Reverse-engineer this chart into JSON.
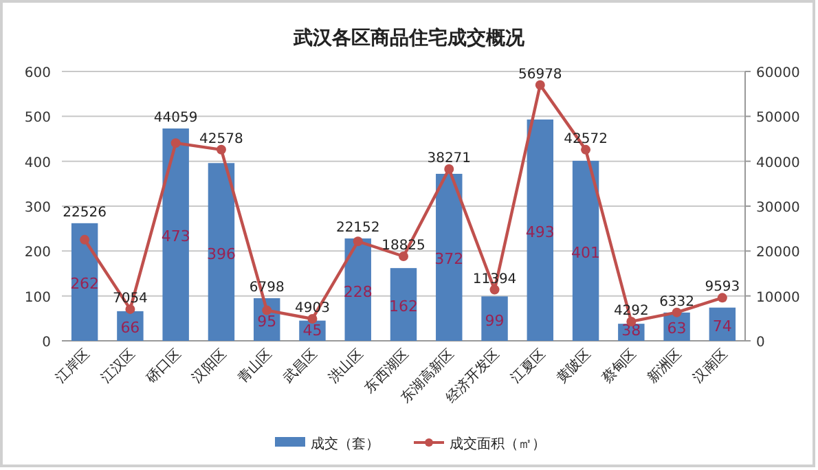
{
  "chart_data": {
    "type": "bar",
    "title": "武汉各区商品住宅成交概况",
    "categories": [
      "江岸区",
      "江汉区",
      "硚口区",
      "汉阳区",
      "青山区",
      "武昌区",
      "洪山区",
      "东西湖区",
      "东湖高新区",
      "经济开发区",
      "江夏区",
      "黄陂区",
      "蔡甸区",
      "新洲区",
      "汉南区"
    ],
    "series": [
      {
        "name": "成交（套）",
        "color": "#4f81bd",
        "values": [
          262,
          66,
          473,
          396,
          95,
          45,
          228,
          162,
          372,
          99,
          493,
          401,
          38,
          63,
          74
        ]
      },
      {
        "name": "成交面积（㎡）",
        "type": "line",
        "axis": "y2",
        "color": "#c0504d",
        "marker": "circle",
        "values": [
          22526,
          7054,
          44059,
          42578,
          6798,
          4903,
          22152,
          18825,
          38271,
          11394,
          56978,
          42572,
          4292,
          6332,
          9593
        ]
      }
    ],
    "ylim": [
      0,
      600
    ],
    "yticks": [
      0,
      100,
      200,
      300,
      400,
      500,
      600
    ],
    "y2lim": [
      0,
      60000
    ],
    "y2ticks": [
      0,
      10000,
      20000,
      30000,
      40000,
      50000,
      60000
    ],
    "grid": "y",
    "legend": "bottom",
    "data_labels": true
  }
}
